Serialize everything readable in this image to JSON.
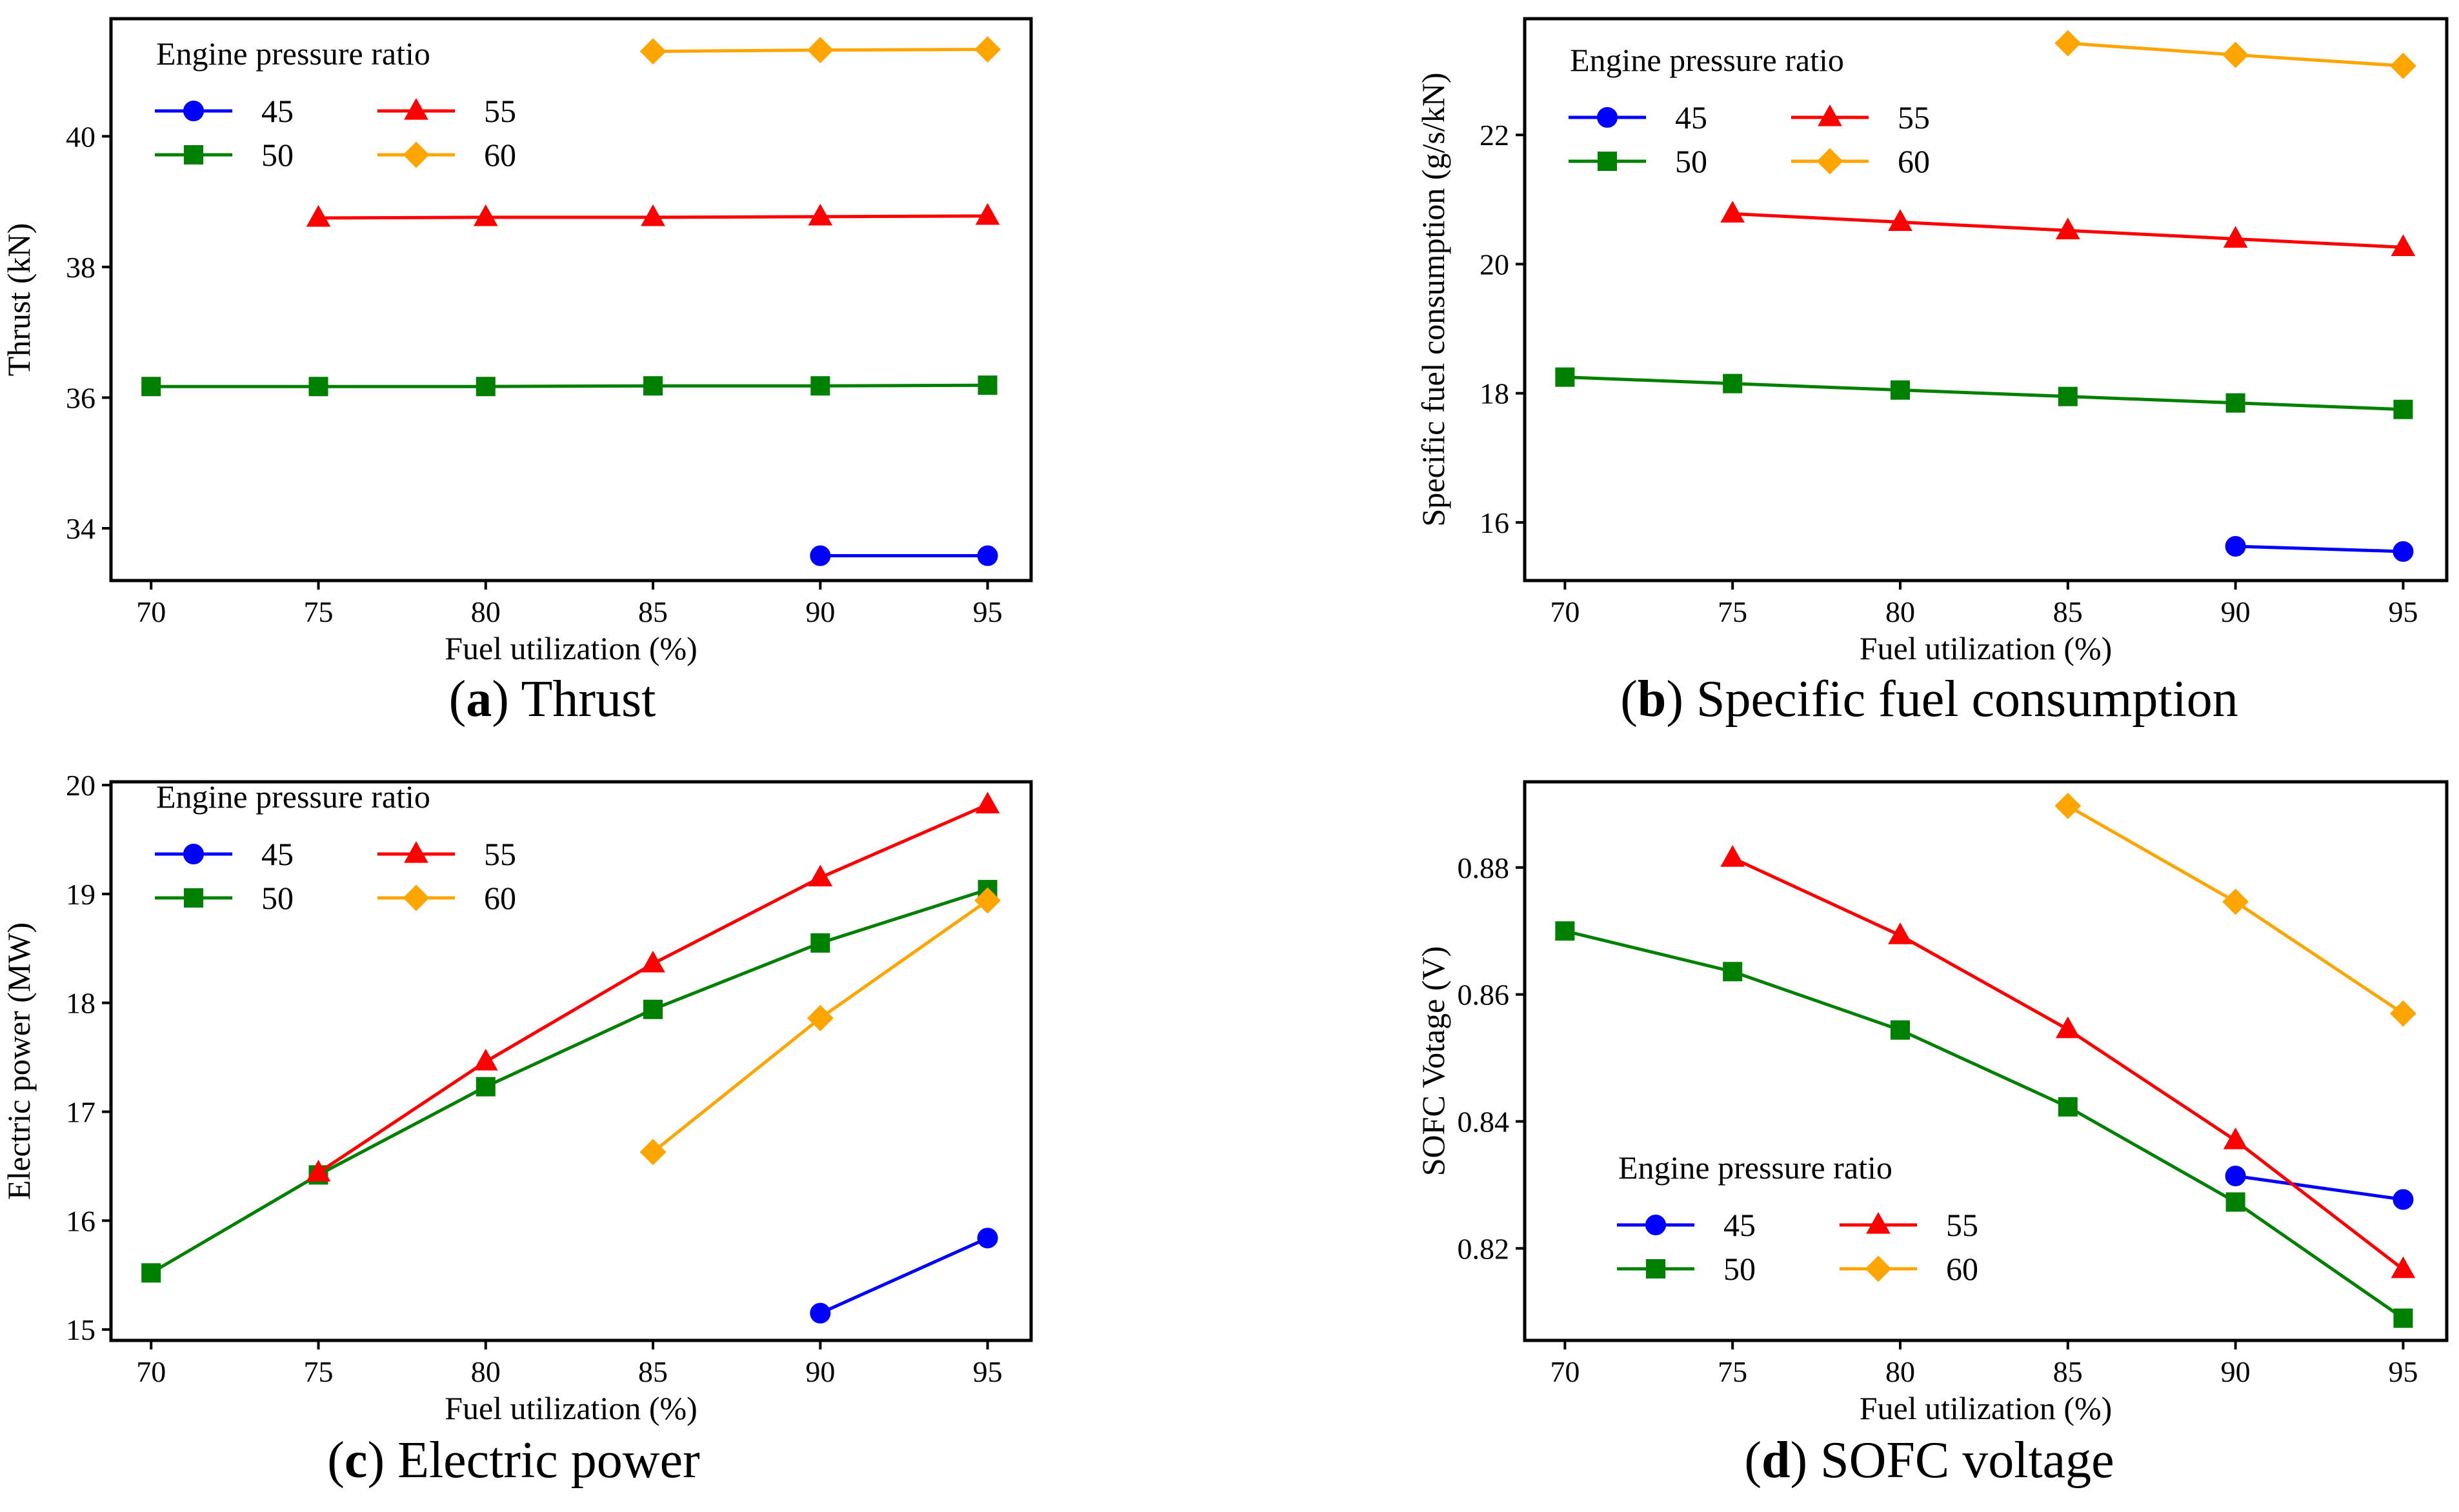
{
  "chart_data": [
    {
      "id": "a",
      "type": "line",
      "caption_letter": "a",
      "caption_text": "Thrust",
      "xlabel": "Fuel utilization (%)",
      "ylabel": "Thrust (kN)",
      "xlim": [
        68.8,
        96.3
      ],
      "ylim": [
        33.2,
        41.8
      ],
      "xticks": [
        70,
        75,
        80,
        85,
        90,
        95
      ],
      "yticks": [
        34,
        36,
        38,
        40
      ],
      "legend_title": "Engine pressure ratio",
      "legend_position": "top-left",
      "series": [
        {
          "name": "45",
          "color": "#0000ff",
          "marker": "circle",
          "x": [
            90,
            95
          ],
          "y": [
            33.58,
            33.58
          ]
        },
        {
          "name": "50",
          "color": "#008000",
          "marker": "square",
          "x": [
            70,
            75,
            80,
            85,
            90,
            95
          ],
          "y": [
            36.17,
            36.17,
            36.17,
            36.18,
            36.18,
            36.19
          ]
        },
        {
          "name": "55",
          "color": "#ff0000",
          "marker": "triangle",
          "x": [
            75,
            80,
            85,
            90,
            95
          ],
          "y": [
            38.75,
            38.76,
            38.76,
            38.77,
            38.78
          ]
        },
        {
          "name": "60",
          "color": "#ffa500",
          "marker": "diamond",
          "x": [
            85,
            90,
            95
          ],
          "y": [
            41.3,
            41.32,
            41.33
          ]
        }
      ]
    },
    {
      "id": "b",
      "type": "line",
      "caption_letter": "b",
      "caption_text": "Specific fuel consumption",
      "xlabel": "Fuel utilization (%)",
      "ylabel": "Specific fuel consumption (g/s/kN)",
      "xlim": [
        68.8,
        96.3
      ],
      "ylim": [
        15.1,
        23.8
      ],
      "xticks": [
        70,
        75,
        80,
        85,
        90,
        95
      ],
      "yticks": [
        16,
        18,
        20,
        22
      ],
      "legend_title": "Engine pressure ratio",
      "legend_position": "top-left",
      "series": [
        {
          "name": "45",
          "color": "#0000ff",
          "marker": "circle",
          "x": [
            90,
            95
          ],
          "y": [
            15.63,
            15.55
          ]
        },
        {
          "name": "50",
          "color": "#008000",
          "marker": "square",
          "x": [
            70,
            75,
            80,
            85,
            90,
            95
          ],
          "y": [
            18.25,
            18.15,
            18.05,
            17.95,
            17.85,
            17.75
          ]
        },
        {
          "name": "55",
          "color": "#ff0000",
          "marker": "triangle",
          "x": [
            75,
            80,
            85,
            90,
            95
          ],
          "y": [
            20.78,
            20.65,
            20.52,
            20.39,
            20.26
          ]
        },
        {
          "name": "60",
          "color": "#ffa500",
          "marker": "diamond",
          "x": [
            85,
            90,
            95
          ],
          "y": [
            23.42,
            23.24,
            23.07
          ]
        }
      ]
    },
    {
      "id": "c",
      "type": "line",
      "caption_letter": "c",
      "caption_text": "Electric power",
      "xlabel": "Fuel utilization (%)",
      "ylabel": "Electric power (MW)",
      "xlim": [
        68.8,
        96.3
      ],
      "ylim": [
        14.9,
        20.03
      ],
      "xticks": [
        70,
        75,
        80,
        85,
        90,
        95
      ],
      "yticks": [
        15,
        16,
        17,
        18,
        19,
        20
      ],
      "legend_title": "Engine pressure ratio",
      "legend_position": "top-left",
      "series": [
        {
          "name": "45",
          "color": "#0000ff",
          "marker": "circle",
          "x": [
            90,
            95
          ],
          "y": [
            15.15,
            15.84
          ]
        },
        {
          "name": "50",
          "color": "#008000",
          "marker": "square",
          "x": [
            70,
            75,
            80,
            85,
            90,
            95
          ],
          "y": [
            15.52,
            16.42,
            17.23,
            17.94,
            18.55,
            19.04
          ]
        },
        {
          "name": "55",
          "color": "#ff0000",
          "marker": "triangle",
          "x": [
            75,
            80,
            85,
            90,
            95
          ],
          "y": [
            16.44,
            17.46,
            18.36,
            19.15,
            19.82
          ]
        },
        {
          "name": "60",
          "color": "#ffa500",
          "marker": "diamond",
          "x": [
            85,
            90,
            95
          ],
          "y": [
            16.63,
            17.86,
            18.94
          ]
        }
      ]
    },
    {
      "id": "d",
      "type": "line",
      "caption_letter": "d",
      "caption_text": "SOFC voltage",
      "xlabel": "Fuel utilization (%)",
      "ylabel": "SOFC Votage (V)",
      "xlim": [
        68.8,
        96.3
      ],
      "ylim": [
        0.8055,
        0.8935
      ],
      "xticks": [
        70,
        75,
        80,
        85,
        90,
        95
      ],
      "yticks": [
        0.82,
        0.84,
        0.86,
        0.88
      ],
      "legend_title": "Engine pressure ratio",
      "legend_position": "bottom-left",
      "series": [
        {
          "name": "45",
          "color": "#0000ff",
          "marker": "circle",
          "x": [
            90,
            95
          ],
          "y": [
            0.8314,
            0.8277
          ]
        },
        {
          "name": "50",
          "color": "#008000",
          "marker": "square",
          "x": [
            70,
            75,
            80,
            85,
            90,
            95
          ],
          "y": [
            0.87,
            0.8636,
            0.8544,
            0.8423,
            0.8273,
            0.809
          ]
        },
        {
          "name": "55",
          "color": "#ff0000",
          "marker": "triangle",
          "x": [
            75,
            80,
            85,
            90,
            95
          ],
          "y": [
            0.8815,
            0.8693,
            0.8545,
            0.837,
            0.8167
          ]
        },
        {
          "name": "60",
          "color": "#ffa500",
          "marker": "diamond",
          "x": [
            85,
            90,
            95
          ],
          "y": [
            0.8897,
            0.8746,
            0.857
          ]
        }
      ]
    }
  ]
}
